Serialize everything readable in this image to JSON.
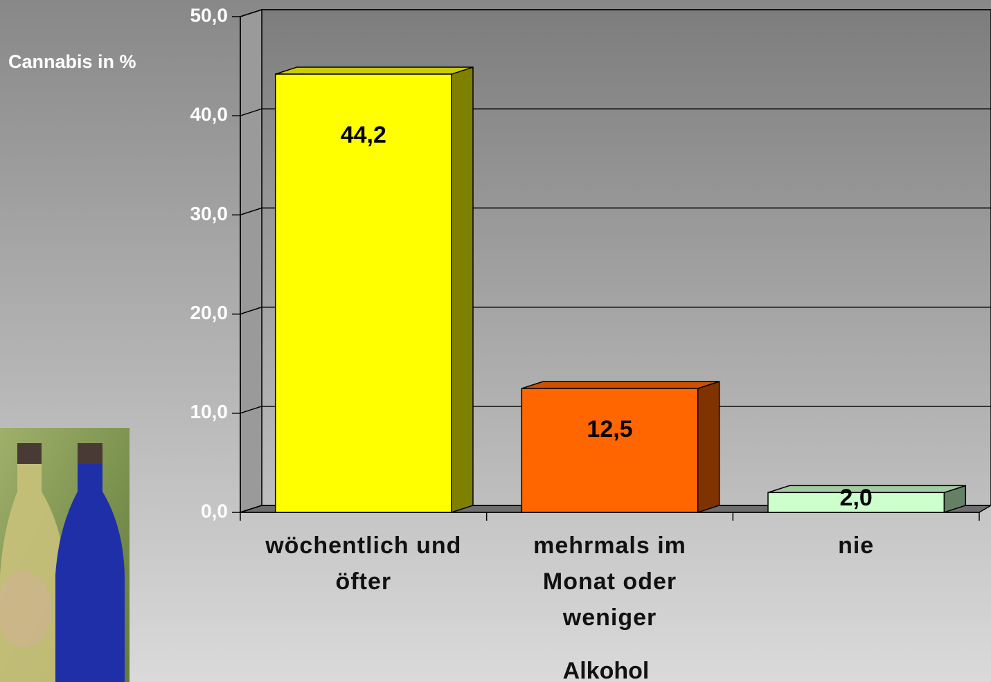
{
  "chart_data": {
    "type": "bar3d",
    "y_label": "Cannabis in %",
    "x_label": "Alkohol",
    "categories": [
      "wöchentlich und öfter",
      "mehrmals im Monat oder weniger",
      "nie"
    ],
    "values": [
      44.2,
      12.5,
      2.0
    ],
    "value_labels": [
      "44,2",
      "12,5",
      "2,0"
    ],
    "colors": [
      "#ffff00",
      "#ff6600",
      "#ccffcc"
    ],
    "ylim": [
      0,
      50
    ],
    "yticks": [
      {
        "value": 0,
        "label": "0,0"
      },
      {
        "value": 10,
        "label": "10,0"
      },
      {
        "value": 20,
        "label": "20,0"
      },
      {
        "value": 30,
        "label": "30,0"
      },
      {
        "value": 40,
        "label": "40,0"
      },
      {
        "value": 50,
        "label": "50,0"
      }
    ],
    "grid": true
  }
}
